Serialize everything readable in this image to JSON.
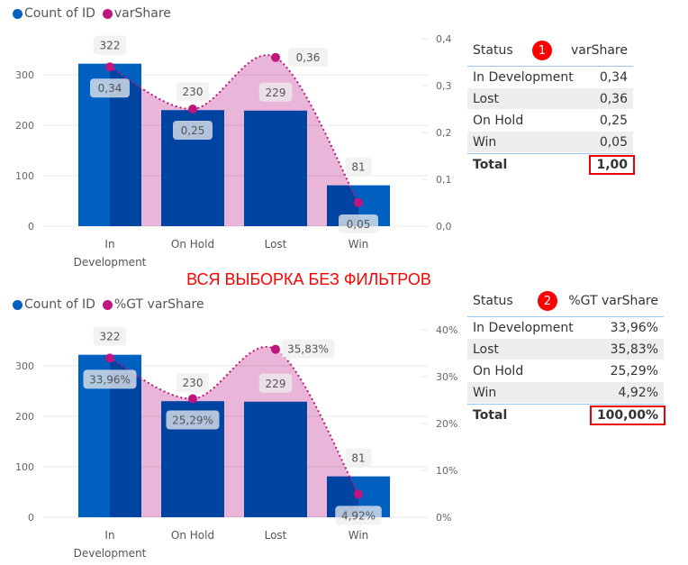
{
  "colors": {
    "bar": "#0060c0",
    "area": "#e29ccb",
    "line": "#c0157f",
    "overlap": "#4f44a3"
  },
  "chart_data": [
    {
      "type": "bar+area",
      "legend": [
        "Count of ID",
        "varShare"
      ],
      "categories": [
        "In Development",
        "On Hold",
        "Lost",
        "Win"
      ],
      "category_lines": [
        [
          "In",
          "Development"
        ],
        [
          "On Hold"
        ],
        [
          "Lost"
        ],
        [
          "Win"
        ]
      ],
      "bar_values": [
        322,
        230,
        229,
        81
      ],
      "bar_labels": [
        "322",
        "230",
        "229",
        "81"
      ],
      "line_values": [
        0.34,
        0.25,
        0.36,
        0.05
      ],
      "line_labels": [
        "0,34",
        "0,25",
        "0,36",
        "0,05"
      ],
      "y_left": {
        "range": [
          0,
          400
        ],
        "ticks": [
          0,
          100,
          200,
          300
        ],
        "tick_labels": [
          "0",
          "100",
          "200",
          "300"
        ]
      },
      "y_right": {
        "range": [
          0,
          0.4
        ],
        "ticks": [
          0,
          0.1,
          0.2,
          0.3,
          0.4
        ],
        "tick_labels": [
          "0,0",
          "0,1",
          "0,2",
          "0,3",
          "0,4"
        ]
      }
    },
    {
      "type": "bar+area",
      "legend": [
        "Count of ID",
        "%GT varShare"
      ],
      "categories": [
        "In Development",
        "On Hold",
        "Lost",
        "Win"
      ],
      "category_lines": [
        [
          "In",
          "Development"
        ],
        [
          "On Hold"
        ],
        [
          "Lost"
        ],
        [
          "Win"
        ]
      ],
      "bar_values": [
        322,
        230,
        229,
        81
      ],
      "bar_labels": [
        "322",
        "230",
        "229",
        "81"
      ],
      "line_values": [
        0.3396,
        0.2529,
        0.3583,
        0.0492
      ],
      "line_labels": [
        "33,96%",
        "25,29%",
        "35,83%",
        "4,92%"
      ],
      "y_left": {
        "range": [
          0,
          400
        ],
        "ticks": [
          0,
          100,
          200,
          300
        ],
        "tick_labels": [
          "0",
          "100",
          "200",
          "300"
        ]
      },
      "y_right": {
        "range": [
          0,
          0.4
        ],
        "ticks": [
          0,
          0.1,
          0.2,
          0.3,
          0.4
        ],
        "tick_labels": [
          "0%",
          "10%",
          "20%",
          "30%",
          "40%"
        ]
      }
    }
  ],
  "banner": "ВСЯ ВЫБОРКА БЕЗ ФИЛЬТРОВ",
  "tables": [
    {
      "badge": "1",
      "col1": "Status",
      "col2": "varShare",
      "rows": [
        [
          "In Development",
          "0,34"
        ],
        [
          "Lost",
          "0,36"
        ],
        [
          "On Hold",
          "0,25"
        ],
        [
          "Win",
          "0,05"
        ]
      ],
      "total_label": "Total",
      "total_value": "1,00"
    },
    {
      "badge": "2",
      "col1": "Status",
      "col2": "%GT varShare",
      "rows": [
        [
          "In Development",
          "33,96%"
        ],
        [
          "Lost",
          "35,83%"
        ],
        [
          "On Hold",
          "25,29%"
        ],
        [
          "Win",
          "4,92%"
        ]
      ],
      "total_label": "Total",
      "total_value": "100,00%"
    }
  ]
}
